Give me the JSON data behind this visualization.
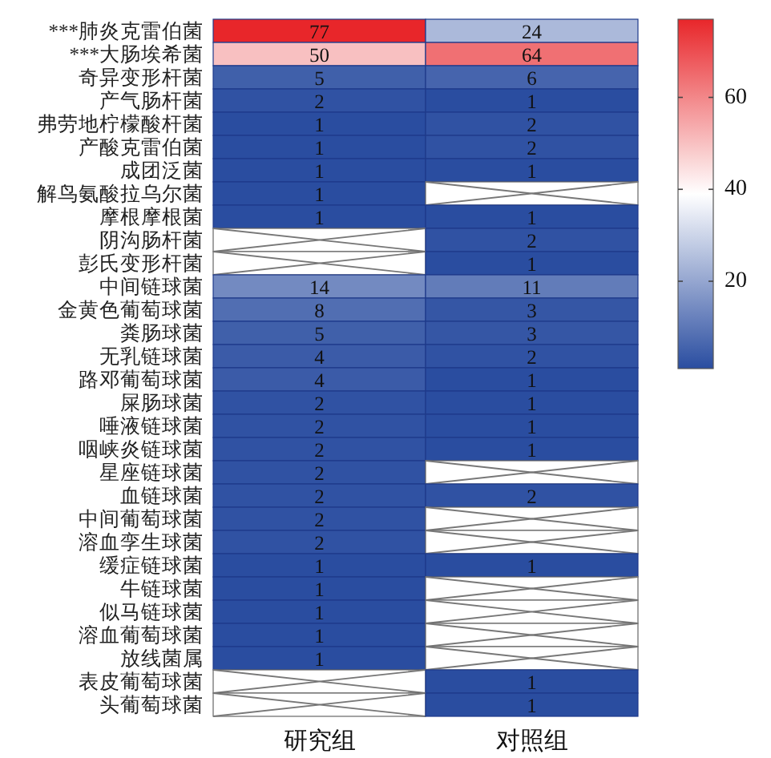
{
  "chart_data": {
    "type": "heatmap",
    "categories": [
      "研究组",
      "对照组"
    ],
    "y_categories": [
      "***肺炎克雷伯菌",
      "***大肠埃希菌",
      "奇异变形杆菌",
      "产气肠杆菌",
      "弗劳地柠檬酸杆菌",
      "产酸克雷伯菌",
      "成团泛菌",
      "解鸟氨酸拉乌尔菌",
      "摩根摩根菌",
      "阴沟肠杆菌",
      "彭氏变形杆菌",
      "中间链球菌",
      "金黄色葡萄球菌",
      "粪肠球菌",
      "无乳链球菌",
      "路邓葡萄球菌",
      "屎肠球菌",
      "唾液链球菌",
      "咽峡炎链球菌",
      "星座链球菌",
      "血链球菌",
      "中间葡萄球菌",
      "溶血孪生球菌",
      "缓症链球菌",
      "牛链球菌",
      "似马链球菌",
      "溶血葡萄球菌",
      "放线菌属",
      "表皮葡萄球菌",
      "头葡萄球菌"
    ],
    "cells": [
      [
        77,
        24
      ],
      [
        50,
        64
      ],
      [
        5,
        6
      ],
      [
        2,
        1
      ],
      [
        1,
        2
      ],
      [
        1,
        2
      ],
      [
        1,
        1
      ],
      [
        1,
        null
      ],
      [
        1,
        1
      ],
      [
        null,
        2
      ],
      [
        null,
        1
      ],
      [
        14,
        11
      ],
      [
        8,
        3
      ],
      [
        5,
        3
      ],
      [
        4,
        2
      ],
      [
        4,
        1
      ],
      [
        2,
        1
      ],
      [
        2,
        1
      ],
      [
        2,
        1
      ],
      [
        2,
        null
      ],
      [
        2,
        2
      ],
      [
        2,
        null
      ],
      [
        2,
        null
      ],
      [
        1,
        1
      ],
      [
        1,
        null
      ],
      [
        1,
        null
      ],
      [
        1,
        null
      ],
      [
        1,
        null
      ],
      [
        null,
        1
      ],
      [
        null,
        1
      ]
    ],
    "clim": [
      1,
      77
    ],
    "cticks": [
      20,
      40,
      60
    ],
    "data_labels": true
  }
}
